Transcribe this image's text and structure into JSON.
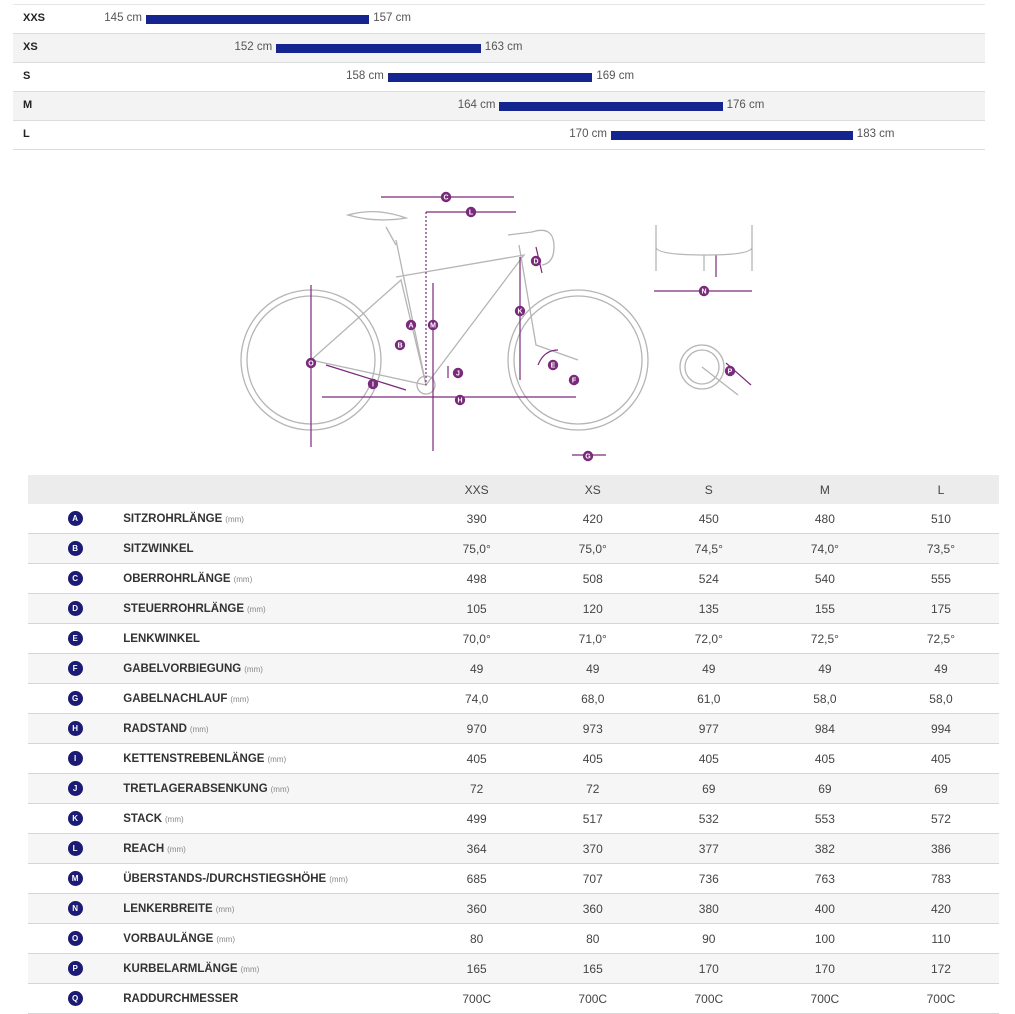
{
  "size_ranges": [
    {
      "size": "XXS",
      "min": "145 cm",
      "max": "157 cm",
      "min_cm": 145,
      "max_cm": 157
    },
    {
      "size": "XS",
      "min": "152 cm",
      "max": "163 cm",
      "min_cm": 152,
      "max_cm": 163
    },
    {
      "size": "S",
      "min": "158 cm",
      "max": "169 cm",
      "min_cm": 158,
      "max_cm": 169
    },
    {
      "size": "M",
      "min": "164 cm",
      "max": "176 cm",
      "min_cm": 164,
      "max_cm": 176
    },
    {
      "size": "L",
      "min": "170 cm",
      "max": "183 cm",
      "min_cm": 170,
      "max_cm": 183
    }
  ],
  "diagram_letters": [
    "A",
    "B",
    "C",
    "D",
    "E",
    "F",
    "G",
    "H",
    "I",
    "J",
    "K",
    "L",
    "M",
    "N",
    "O",
    "P",
    "Q"
  ],
  "geometry": {
    "columns": [
      "XXS",
      "XS",
      "S",
      "M",
      "L"
    ],
    "rows": [
      {
        "letter": "A",
        "label": "SITZROHRLÄNGE",
        "unit": "(mm)",
        "values": [
          "390",
          "420",
          "450",
          "480",
          "510"
        ]
      },
      {
        "letter": "B",
        "label": "SITZWINKEL",
        "unit": "",
        "values": [
          "75,0°",
          "75,0°",
          "74,5°",
          "74,0°",
          "73,5°"
        ]
      },
      {
        "letter": "C",
        "label": "OBERROHRLÄNGE",
        "unit": "(mm)",
        "values": [
          "498",
          "508",
          "524",
          "540",
          "555"
        ]
      },
      {
        "letter": "D",
        "label": "STEUERROHRLÄNGE",
        "unit": "(mm)",
        "values": [
          "105",
          "120",
          "135",
          "155",
          "175"
        ]
      },
      {
        "letter": "E",
        "label": "LENKWINKEL",
        "unit": "",
        "values": [
          "70,0°",
          "71,0°",
          "72,0°",
          "72,5°",
          "72,5°"
        ]
      },
      {
        "letter": "F",
        "label": "GABELVORBIEGUNG",
        "unit": "(mm)",
        "values": [
          "49",
          "49",
          "49",
          "49",
          "49"
        ]
      },
      {
        "letter": "G",
        "label": "GABELNACHLAUF",
        "unit": "(mm)",
        "values": [
          "74,0",
          "68,0",
          "61,0",
          "58,0",
          "58,0"
        ]
      },
      {
        "letter": "H",
        "label": "RADSTAND",
        "unit": "(mm)",
        "values": [
          "970",
          "973",
          "977",
          "984",
          "994"
        ]
      },
      {
        "letter": "I",
        "label": "KETTENSTREBENLÄNGE",
        "unit": "(mm)",
        "values": [
          "405",
          "405",
          "405",
          "405",
          "405"
        ]
      },
      {
        "letter": "J",
        "label": "TRETLAGERABSENKUNG",
        "unit": "(mm)",
        "values": [
          "72",
          "72",
          "69",
          "69",
          "69"
        ]
      },
      {
        "letter": "K",
        "label": "STACK",
        "unit": "(mm)",
        "values": [
          "499",
          "517",
          "532",
          "553",
          "572"
        ]
      },
      {
        "letter": "L",
        "label": "REACH",
        "unit": "(mm)",
        "values": [
          "364",
          "370",
          "377",
          "382",
          "386"
        ]
      },
      {
        "letter": "M",
        "label": "ÜBERSTANDS-/DURCHSTIEGSHÖHE",
        "unit": "(mm)",
        "values": [
          "685",
          "707",
          "736",
          "763",
          "783"
        ]
      },
      {
        "letter": "N",
        "label": "LENKERBREITE",
        "unit": "(mm)",
        "values": [
          "360",
          "360",
          "380",
          "400",
          "420"
        ]
      },
      {
        "letter": "O",
        "label": "VORBAULÄNGE",
        "unit": "(mm)",
        "values": [
          "80",
          "80",
          "90",
          "100",
          "110"
        ]
      },
      {
        "letter": "P",
        "label": "KURBELARMLÄNGE",
        "unit": "(mm)",
        "values": [
          "165",
          "165",
          "170",
          "170",
          "172"
        ]
      },
      {
        "letter": "Q",
        "label": "RADDURCHMESSER",
        "unit": "",
        "values": [
          "700C",
          "700C",
          "700C",
          "700C",
          "700C"
        ]
      }
    ]
  },
  "colors": {
    "bar": "#14258f",
    "badge": "#1b1b75",
    "dimension": "#7a2a7a",
    "bike_line": "#b5b5b5"
  }
}
